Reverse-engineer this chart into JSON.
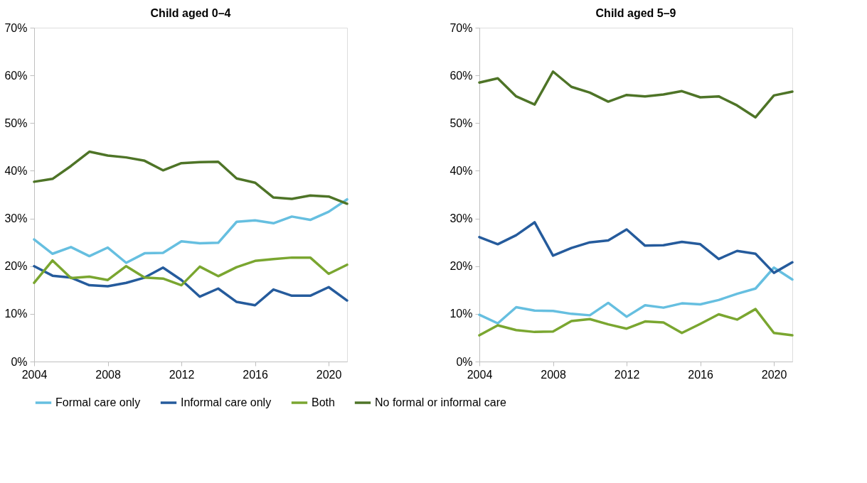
{
  "chart_data": [
    {
      "type": "line",
      "title": "Child aged 0–4",
      "x": [
        2004,
        2005,
        2006,
        2007,
        2008,
        2009,
        2010,
        2011,
        2012,
        2013,
        2014,
        2015,
        2016,
        2017,
        2018,
        2019,
        2020,
        2021
      ],
      "xlim": [
        2004,
        2021
      ],
      "xticks": [
        2004,
        2008,
        2012,
        2016,
        2020
      ],
      "ylim": [
        0,
        70
      ],
      "yticks": [
        {
          "value": 0,
          "label": "0%"
        },
        {
          "value": 10,
          "label": "10%"
        },
        {
          "value": 20,
          "label": "20%"
        },
        {
          "value": 30,
          "label": "30%"
        },
        {
          "value": 40,
          "label": "40%"
        },
        {
          "value": 50,
          "label": "50%"
        },
        {
          "value": 60,
          "label": "60%"
        },
        {
          "value": 70,
          "label": "70%"
        }
      ],
      "grid": false,
      "legend": "bottom",
      "marker": "none",
      "line_style": "solid",
      "series": [
        {
          "name": "Formal care only",
          "color": "#66bfe0",
          "values": [
            25.6,
            22.6,
            24.0,
            22.1,
            23.9,
            20.7,
            22.7,
            22.8,
            25.2,
            24.8,
            24.9,
            29.3,
            29.6,
            29.0,
            30.4,
            29.7,
            31.4,
            34.0
          ]
        },
        {
          "name": "Informal care only",
          "color": "#255b9c",
          "values": [
            20.0,
            18.0,
            17.6,
            16.0,
            15.8,
            16.5,
            17.6,
            19.7,
            17.1,
            13.6,
            15.3,
            12.5,
            11.8,
            15.1,
            13.8,
            13.8,
            15.6,
            12.8
          ]
        },
        {
          "name": "Both",
          "color": "#7aa630",
          "values": [
            16.5,
            21.2,
            17.5,
            17.8,
            17.1,
            20.0,
            17.6,
            17.4,
            16.0,
            19.9,
            17.9,
            19.8,
            21.1,
            21.5,
            21.8,
            21.8,
            18.4,
            20.3
          ]
        },
        {
          "name": "No formal or informal care",
          "color": "#4e7427",
          "values": [
            37.7,
            38.3,
            41.0,
            44.0,
            43.2,
            42.8,
            42.1,
            40.1,
            41.6,
            41.8,
            41.9,
            38.4,
            37.5,
            34.4,
            34.1,
            34.8,
            34.6,
            33.1
          ]
        }
      ]
    },
    {
      "type": "line",
      "title": "Child aged 5–9",
      "x": [
        2004,
        2005,
        2006,
        2007,
        2008,
        2009,
        2010,
        2011,
        2012,
        2013,
        2014,
        2015,
        2016,
        2017,
        2018,
        2019,
        2020,
        2021
      ],
      "xlim": [
        2004,
        2021
      ],
      "xticks": [
        2004,
        2008,
        2012,
        2016,
        2020
      ],
      "ylim": [
        0,
        70
      ],
      "yticks": [
        {
          "value": 0,
          "label": "0%"
        },
        {
          "value": 10,
          "label": "10%"
        },
        {
          "value": 20,
          "label": "20%"
        },
        {
          "value": 30,
          "label": "30%"
        },
        {
          "value": 40,
          "label": "40%"
        },
        {
          "value": 50,
          "label": "50%"
        },
        {
          "value": 60,
          "label": "60%"
        },
        {
          "value": 70,
          "label": "70%"
        }
      ],
      "grid": false,
      "legend": "bottom",
      "marker": "none",
      "line_style": "solid",
      "series": [
        {
          "name": "Formal care only",
          "color": "#66bfe0",
          "values": [
            9.8,
            8.0,
            11.4,
            10.7,
            10.6,
            10.0,
            9.7,
            12.3,
            9.4,
            11.8,
            11.3,
            12.2,
            12.0,
            12.9,
            14.2,
            15.3,
            19.7,
            17.2
          ]
        },
        {
          "name": "Informal care only",
          "color": "#255b9c",
          "values": [
            26.1,
            24.6,
            26.5,
            29.2,
            22.2,
            23.8,
            25.0,
            25.4,
            27.7,
            24.3,
            24.4,
            25.1,
            24.6,
            21.5,
            23.2,
            22.6,
            18.6,
            20.8
          ]
        },
        {
          "name": "Both",
          "color": "#7aa630",
          "values": [
            5.5,
            7.6,
            6.6,
            6.2,
            6.3,
            8.5,
            8.9,
            7.8,
            6.9,
            8.4,
            8.2,
            6.0,
            7.9,
            9.9,
            8.8,
            11.0,
            6.0,
            5.5
          ]
        },
        {
          "name": "No formal or informal care",
          "color": "#4e7427",
          "values": [
            58.5,
            59.4,
            55.6,
            53.9,
            60.8,
            57.6,
            56.4,
            54.5,
            55.9,
            55.6,
            56.0,
            56.7,
            55.4,
            55.6,
            53.7,
            51.2,
            55.8,
            56.6
          ]
        }
      ]
    }
  ]
}
